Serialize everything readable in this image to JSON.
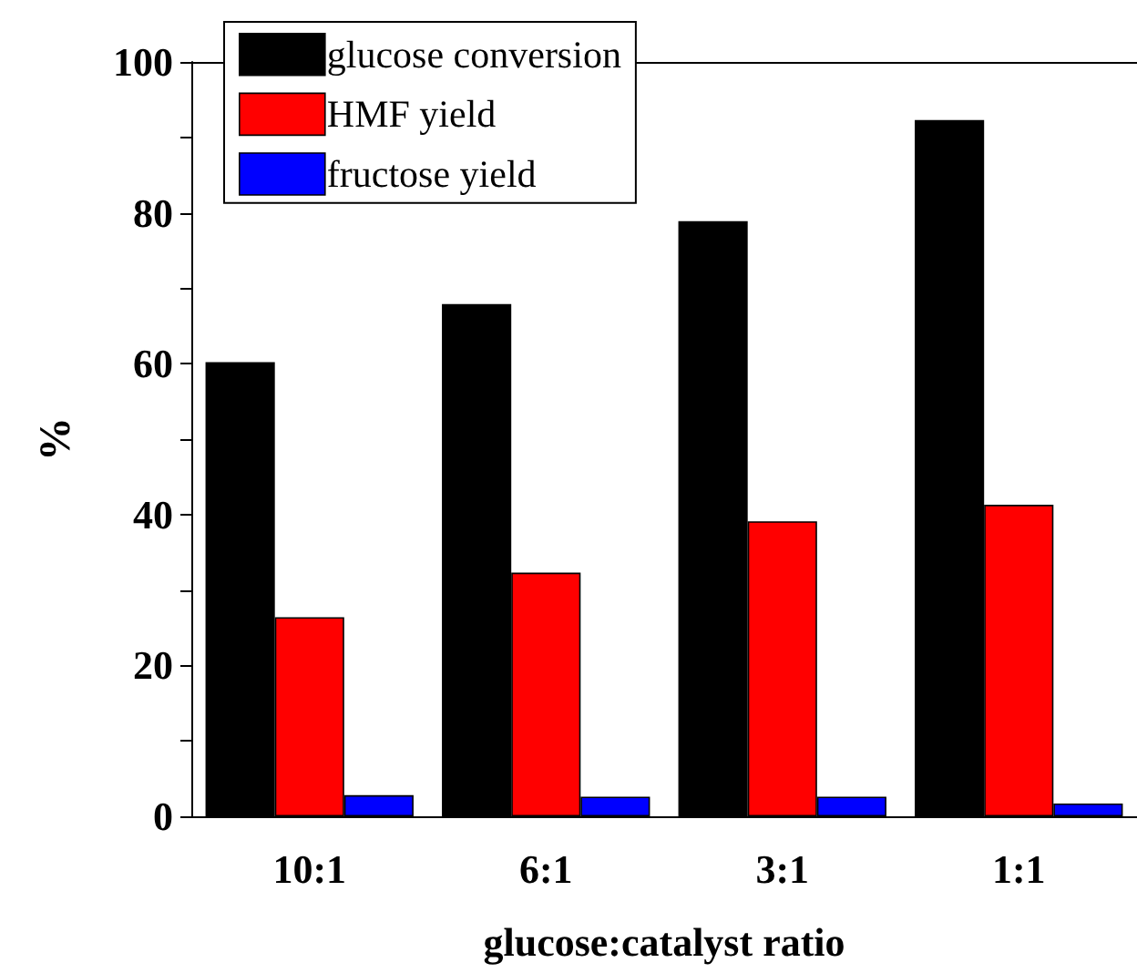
{
  "chart_data": {
    "type": "bar",
    "xlabel": "glucose:catalyst ratio",
    "ylabel": "%",
    "categories": [
      "10:1",
      "6:1",
      "3:1",
      "1:1"
    ],
    "series": [
      {
        "name": "glucose conversion",
        "color": "#000000",
        "values": [
          60.2,
          67.9,
          78.9,
          92.3
        ]
      },
      {
        "name": "HMF yield",
        "color": "#ff0000",
        "values": [
          26.4,
          32.3,
          39.1,
          41.3
        ]
      },
      {
        "name": "fructose yield",
        "color": "#0000ff",
        "values": [
          2.8,
          2.6,
          2.6,
          1.7
        ]
      }
    ],
    "ylim": [
      0,
      100
    ],
    "yticks": [
      0,
      20,
      40,
      60,
      80,
      100
    ],
    "grid": false,
    "legend": "top left"
  }
}
